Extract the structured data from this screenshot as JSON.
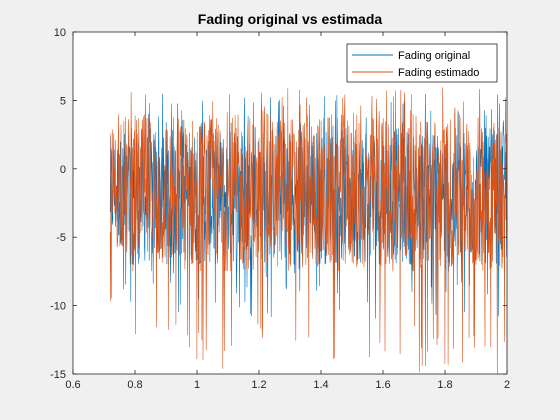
{
  "chart_data": {
    "type": "line",
    "title": "Fading original vs estimada",
    "xlabel": "",
    "ylabel": "",
    "xlim": [
      0.6,
      2
    ],
    "ylim": [
      -15,
      10
    ],
    "xticks": [
      0.6,
      0.8,
      1,
      1.2,
      1.4,
      1.6,
      1.8,
      2
    ],
    "xtick_labels": [
      "0.6",
      "0.8",
      "1",
      "1.2",
      "1.4",
      "1.6",
      "1.8",
      "2"
    ],
    "yticks": [
      -15,
      -10,
      -5,
      0,
      5,
      10
    ],
    "ytick_labels": [
      "-15",
      "-10",
      "-5",
      "0",
      "5",
      "10"
    ],
    "grid": false,
    "legend_position": "top-right",
    "series": [
      {
        "name": "Fading original",
        "color": "#0072BD",
        "x_start": 0.72,
        "x_end": 2.0,
        "typical_range": [
          -7,
          3
        ],
        "peaks_max": 5.5,
        "peaks_min": -11
      },
      {
        "name": "Fading estimado",
        "color": "#D95319",
        "x_start": 0.72,
        "x_end": 2.0,
        "typical_range": [
          -7.5,
          4
        ],
        "peaks_max": 6,
        "peaks_min": -15
      }
    ]
  },
  "colors": {
    "figure_background": "#f0f0f0",
    "axes_background": "#ffffff",
    "axes_color": "#262626"
  }
}
